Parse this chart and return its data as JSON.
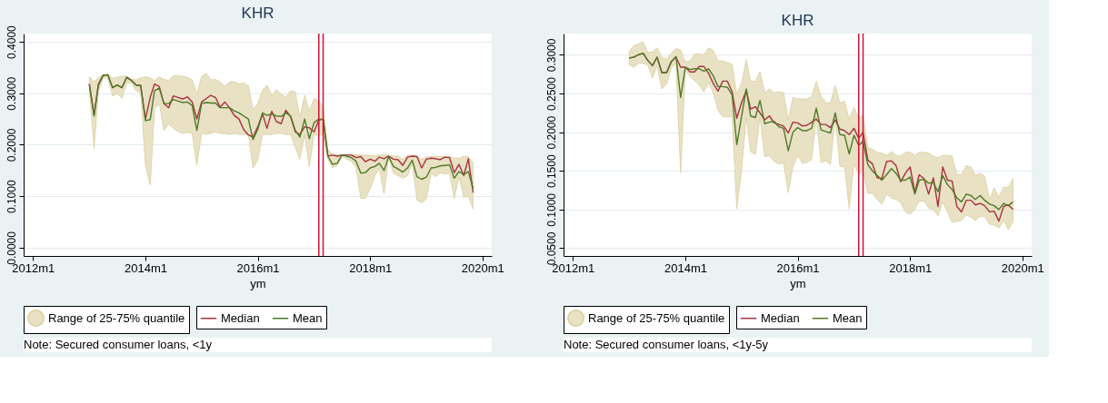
{
  "chart_data": [
    {
      "type": "line",
      "title": "KHR",
      "xlabel": "ym",
      "annotations": [
        "Note: Secured consumer loans, <1y"
      ],
      "x": [
        "2013-01",
        "2013-02",
        "2013-03",
        "2013-04",
        "2013-05",
        "2013-06",
        "2013-07",
        "2013-08",
        "2013-09",
        "2013-10",
        "2013-11",
        "2013-12",
        "2014-01",
        "2014-02",
        "2014-03",
        "2014-04",
        "2014-05",
        "2014-06",
        "2014-07",
        "2014-08",
        "2014-09",
        "2014-10",
        "2014-11",
        "2014-12",
        "2015-01",
        "2015-02",
        "2015-03",
        "2015-04",
        "2015-05",
        "2015-06",
        "2015-07",
        "2015-08",
        "2015-09",
        "2015-10",
        "2015-11",
        "2015-12",
        "2016-01",
        "2016-02",
        "2016-03",
        "2016-04",
        "2016-05",
        "2016-06",
        "2016-07",
        "2016-08",
        "2016-09",
        "2016-10",
        "2016-11",
        "2016-12",
        "2017-01",
        "2017-02",
        "2017-03",
        "2017-04",
        "2017-05",
        "2017-06",
        "2017-07",
        "2017-08",
        "2017-09",
        "2017-10",
        "2017-11",
        "2017-12",
        "2018-01",
        "2018-02",
        "2018-03",
        "2018-04",
        "2018-05",
        "2018-06",
        "2018-07",
        "2018-08",
        "2018-09",
        "2018-10",
        "2018-11",
        "2018-12",
        "2019-01",
        "2019-02",
        "2019-03",
        "2019-04",
        "2019-05",
        "2019-06",
        "2019-07",
        "2019-08",
        "2019-09",
        "2019-10",
        "2019-11"
      ],
      "series": [
        {
          "name": "Range of 25-75% quantile",
          "type": "area",
          "color": "#e8e1c4",
          "values": [
            null,
            null,
            null,
            null,
            null,
            null,
            null,
            null,
            null,
            null,
            null,
            null,
            null,
            null,
            null,
            null,
            null,
            null,
            null,
            null,
            null,
            null,
            null,
            null,
            null,
            null,
            null,
            null,
            null,
            null,
            null,
            null,
            null,
            null,
            null,
            null,
            null,
            null,
            null,
            null,
            null,
            null,
            null,
            null,
            null,
            null,
            null,
            null,
            null,
            null,
            null,
            null,
            null,
            null,
            null,
            null,
            null,
            null,
            null,
            null,
            null,
            null,
            null,
            null,
            null,
            null,
            null,
            null,
            null,
            null,
            null,
            null,
            null,
            null,
            null,
            null,
            null,
            null,
            null,
            null,
            null,
            null,
            null
          ],
          "lower": [
            0.31,
            0.193,
            0.305,
            0.33,
            0.33,
            0.295,
            0.3,
            0.29,
            0.32,
            0.32,
            0.305,
            0.3,
            0.16,
            0.122,
            0.27,
            0.28,
            0.228,
            0.24,
            0.232,
            0.226,
            0.222,
            0.224,
            0.222,
            0.16,
            0.222,
            0.22,
            0.222,
            0.225,
            0.222,
            0.222,
            0.22,
            0.222,
            0.22,
            0.22,
            0.22,
            0.155,
            0.17,
            0.22,
            0.22,
            0.22,
            0.222,
            0.222,
            0.22,
            0.22,
            0.195,
            0.172,
            0.22,
            0.157,
            0.22,
            0.218,
            0.22,
            0.172,
            0.155,
            0.16,
            0.178,
            0.172,
            0.168,
            0.155,
            0.096,
            0.096,
            0.115,
            0.14,
            0.155,
            0.104,
            0.175,
            0.145,
            0.14,
            0.135,
            0.14,
            0.165,
            0.093,
            0.087,
            0.095,
            0.145,
            0.138,
            0.145,
            0.143,
            0.145,
            0.095,
            0.138,
            0.098,
            0.1,
            0.075
          ],
          "upper": [
            0.332,
            0.323,
            0.33,
            0.336,
            0.337,
            0.329,
            0.331,
            0.333,
            0.333,
            0.327,
            0.326,
            0.33,
            0.332,
            0.33,
            0.325,
            0.332,
            0.327,
            0.325,
            0.334,
            0.334,
            0.333,
            0.331,
            0.326,
            0.298,
            0.333,
            0.339,
            0.326,
            0.327,
            0.322,
            0.313,
            0.322,
            0.323,
            0.318,
            0.32,
            0.315,
            0.268,
            0.28,
            0.306,
            0.316,
            0.296,
            0.307,
            0.298,
            0.293,
            0.305,
            0.303,
            0.254,
            0.296,
            0.265,
            0.29,
            0.286,
            0.272,
            0.19,
            0.182,
            0.18,
            0.181,
            0.181,
            0.181,
            0.181,
            0.18,
            0.18,
            0.179,
            0.179,
            0.18,
            0.18,
            0.179,
            0.178,
            0.178,
            0.172,
            0.18,
            0.179,
            0.178,
            0.172,
            0.176,
            0.177,
            0.178,
            0.177,
            0.178,
            0.177,
            0.174,
            0.174,
            0.178,
            0.177,
            0.165
          ]
        },
        {
          "name": "Median",
          "color": "#a8323e",
          "values": [
            0.318,
            0.258,
            0.318,
            0.335,
            0.336,
            0.311,
            0.316,
            0.311,
            0.331,
            0.325,
            0.316,
            0.315,
            0.25,
            0.292,
            0.318,
            0.313,
            0.28,
            0.272,
            0.295,
            0.292,
            0.289,
            0.293,
            0.283,
            0.25,
            0.283,
            0.29,
            0.296,
            0.292,
            0.273,
            0.283,
            0.272,
            0.257,
            0.25,
            0.23,
            0.219,
            0.215,
            0.235,
            0.26,
            0.232,
            0.265,
            0.245,
            0.241,
            0.267,
            0.255,
            0.225,
            0.22,
            0.235,
            0.233,
            0.225,
            0.248,
            0.25,
            0.178,
            0.18,
            0.178,
            0.18,
            0.18,
            0.18,
            0.175,
            0.177,
            0.167,
            0.172,
            0.168,
            0.176,
            0.173,
            0.178,
            0.172,
            0.171,
            0.16,
            0.176,
            0.178,
            0.177,
            0.155,
            0.172,
            0.174,
            0.173,
            0.171,
            0.176,
            0.175,
            0.146,
            0.162,
            0.14,
            0.173,
            0.107
          ]
        },
        {
          "name": "Mean",
          "color": "#4f7a28",
          "values": [
            0.318,
            0.256,
            0.315,
            0.335,
            0.336,
            0.311,
            0.316,
            0.311,
            0.331,
            0.325,
            0.316,
            0.315,
            0.247,
            0.249,
            0.305,
            0.31,
            0.28,
            0.28,
            0.288,
            0.285,
            0.282,
            0.283,
            0.276,
            0.228,
            0.28,
            0.282,
            0.281,
            0.281,
            0.272,
            0.272,
            0.272,
            0.266,
            0.262,
            0.256,
            0.25,
            0.21,
            0.23,
            0.262,
            0.257,
            0.26,
            0.256,
            0.255,
            0.262,
            0.256,
            0.228,
            0.215,
            0.25,
            0.212,
            0.243,
            0.25,
            0.249,
            0.178,
            0.162,
            0.164,
            0.18,
            0.178,
            0.175,
            0.168,
            0.145,
            0.146,
            0.155,
            0.158,
            0.164,
            0.15,
            0.177,
            0.158,
            0.153,
            0.147,
            0.155,
            0.17,
            0.138,
            0.133,
            0.137,
            0.155,
            0.156,
            0.159,
            0.16,
            0.161,
            0.135,
            0.148,
            0.142,
            0.148,
            0.115
          ]
        }
      ],
      "ref_lines": [
        {
          "axis": "x",
          "value": "2017-02",
          "color": "#d0103a"
        },
        {
          "axis": "x",
          "value": "2017-03",
          "color": "#d0103a"
        }
      ],
      "xlim": [
        "2011-11",
        "2020-03"
      ],
      "xticks": [
        {
          "value": "2012-01",
          "label": "2012m1"
        },
        {
          "value": "2014-01",
          "label": "2014m1"
        },
        {
          "value": "2016-01",
          "label": "2016m1"
        },
        {
          "value": "2018-01",
          "label": "2018m1"
        },
        {
          "value": "2020-01",
          "label": "2020m1"
        }
      ],
      "ylim": [
        -0.016,
        0.416
      ],
      "yticks": [
        {
          "value": 0,
          "label": "0.0000"
        },
        {
          "value": 0.1,
          "label": "0.1000"
        },
        {
          "value": 0.2,
          "label": "0.2000"
        },
        {
          "value": 0.3,
          "label": "0.3000"
        },
        {
          "value": 0.4,
          "label": "0.4000"
        }
      ],
      "grid": "y",
      "legend": "bottom"
    },
    {
      "type": "line",
      "title": "KHR",
      "xlabel": "ym",
      "annotations": [
        "Note: Secured consumer loans, <1y-5y"
      ],
      "x": [
        "2013-01",
        "2013-02",
        "2013-03",
        "2013-04",
        "2013-05",
        "2013-06",
        "2013-07",
        "2013-08",
        "2013-09",
        "2013-10",
        "2013-11",
        "2013-12",
        "2014-01",
        "2014-02",
        "2014-03",
        "2014-04",
        "2014-05",
        "2014-06",
        "2014-07",
        "2014-08",
        "2014-09",
        "2014-10",
        "2014-11",
        "2014-12",
        "2015-01",
        "2015-02",
        "2015-03",
        "2015-04",
        "2015-05",
        "2015-06",
        "2015-07",
        "2015-08",
        "2015-09",
        "2015-10",
        "2015-11",
        "2015-12",
        "2016-01",
        "2016-02",
        "2016-03",
        "2016-04",
        "2016-05",
        "2016-06",
        "2016-07",
        "2016-08",
        "2016-09",
        "2016-10",
        "2016-11",
        "2016-12",
        "2017-01",
        "2017-02",
        "2017-03",
        "2017-04",
        "2017-05",
        "2017-06",
        "2017-07",
        "2017-08",
        "2017-09",
        "2017-10",
        "2017-11",
        "2017-12",
        "2018-01",
        "2018-02",
        "2018-03",
        "2018-04",
        "2018-05",
        "2018-06",
        "2018-07",
        "2018-08",
        "2018-09",
        "2018-10",
        "2018-11",
        "2018-12",
        "2019-01",
        "2019-02",
        "2019-03",
        "2019-04",
        "2019-05",
        "2019-06",
        "2019-07",
        "2019-08",
        "2019-09",
        "2019-10",
        "2019-11"
      ],
      "series": [
        {
          "name": "Range of 25-75% quantile",
          "type": "area",
          "color": "#e8e1c4",
          "values": [
            null,
            null,
            null,
            null,
            null,
            null,
            null,
            null,
            null,
            null,
            null,
            null,
            null,
            null,
            null,
            null,
            null,
            null,
            null,
            null,
            null,
            null,
            null,
            null,
            null,
            null,
            null,
            null,
            null,
            null,
            null,
            null,
            null,
            null,
            null,
            null,
            null,
            null,
            null,
            null,
            null,
            null,
            null,
            null,
            null,
            null,
            null,
            null,
            null,
            null,
            null,
            null,
            null,
            null,
            null,
            null,
            null,
            null,
            null,
            null,
            null,
            null,
            null,
            null,
            null,
            null,
            null,
            null,
            null,
            null,
            null,
            null,
            null,
            null,
            null,
            null,
            null,
            null,
            null,
            null,
            null,
            null,
            null
          ],
          "lower": [
            0.287,
            0.284,
            0.289,
            0.289,
            0.287,
            0.27,
            0.286,
            0.256,
            0.262,
            0.283,
            0.289,
            0.148,
            0.28,
            0.272,
            0.267,
            0.261,
            0.252,
            0.264,
            0.251,
            0.228,
            0.22,
            0.22,
            0.22,
            0.101,
            0.15,
            0.22,
            0.175,
            0.171,
            0.22,
            0.168,
            0.17,
            0.162,
            0.159,
            0.16,
            0.122,
            0.155,
            0.17,
            0.16,
            0.161,
            0.165,
            0.22,
            0.161,
            0.163,
            0.158,
            0.22,
            0.156,
            0.155,
            0.101,
            0.159,
            0.146,
            0.15,
            0.121,
            0.121,
            0.113,
            0.107,
            0.12,
            0.115,
            0.113,
            0.109,
            0.097,
            0.094,
            0.1,
            0.111,
            0.111,
            0.102,
            0.1,
            0.092,
            0.11,
            0.097,
            0.083,
            0.085,
            0.086,
            0.093,
            0.09,
            0.086,
            0.091,
            0.091,
            0.081,
            0.08,
            0.076,
            0.086,
            0.074,
            0.084
          ],
          "upper": [
            0.305,
            0.312,
            0.314,
            0.317,
            0.303,
            0.304,
            0.309,
            0.297,
            0.294,
            0.302,
            0.308,
            0.306,
            0.291,
            0.292,
            0.301,
            0.301,
            0.3,
            0.309,
            0.306,
            0.292,
            0.292,
            0.29,
            0.288,
            0.249,
            0.263,
            0.294,
            0.266,
            0.266,
            0.278,
            0.251,
            0.256,
            0.251,
            0.252,
            0.251,
            0.216,
            0.245,
            0.243,
            0.243,
            0.243,
            0.246,
            0.266,
            0.247,
            0.238,
            0.238,
            0.26,
            0.238,
            0.24,
            0.217,
            0.232,
            0.218,
            0.222,
            0.18,
            0.178,
            0.174,
            0.173,
            0.17,
            0.175,
            0.17,
            0.169,
            0.174,
            0.174,
            0.17,
            0.174,
            0.174,
            0.173,
            0.169,
            0.167,
            0.17,
            0.17,
            0.169,
            0.145,
            0.145,
            0.157,
            0.155,
            0.144,
            0.147,
            0.143,
            0.113,
            0.128,
            0.116,
            0.129,
            0.129,
            0.14
          ]
        },
        {
          "name": "Median",
          "color": "#a8323e",
          "values": [
            0.296,
            0.297,
            0.3,
            0.302,
            0.293,
            0.286,
            0.297,
            0.277,
            0.277,
            0.291,
            0.297,
            0.284,
            0.284,
            0.278,
            0.278,
            0.285,
            0.285,
            0.276,
            0.263,
            0.253,
            0.266,
            0.266,
            0.252,
            0.218,
            0.238,
            0.254,
            0.23,
            0.233,
            0.225,
            0.216,
            0.221,
            0.212,
            0.21,
            0.208,
            0.199,
            0.213,
            0.212,
            0.208,
            0.209,
            0.213,
            0.217,
            0.21,
            0.21,
            0.206,
            0.216,
            0.204,
            0.202,
            0.197,
            0.205,
            0.192,
            0.2,
            0.164,
            0.159,
            0.141,
            0.14,
            0.162,
            0.163,
            0.157,
            0.136,
            0.147,
            0.155,
            0.122,
            0.145,
            0.14,
            0.12,
            0.141,
            0.104,
            0.155,
            0.138,
            0.137,
            0.104,
            0.097,
            0.112,
            0.112,
            0.106,
            0.108,
            0.105,
            0.097,
            0.098,
            0.085,
            0.104,
            0.106,
            0.1
          ]
        },
        {
          "name": "Mean",
          "color": "#4f7a28",
          "values": [
            0.296,
            0.297,
            0.3,
            0.302,
            0.293,
            0.286,
            0.297,
            0.277,
            0.277,
            0.291,
            0.298,
            0.245,
            0.284,
            0.281,
            0.282,
            0.282,
            0.279,
            0.282,
            0.273,
            0.259,
            0.259,
            0.258,
            0.248,
            0.184,
            0.22,
            0.256,
            0.221,
            0.219,
            0.241,
            0.211,
            0.213,
            0.214,
            0.207,
            0.205,
            0.176,
            0.2,
            0.206,
            0.202,
            0.202,
            0.205,
            0.231,
            0.203,
            0.201,
            0.199,
            0.225,
            0.197,
            0.196,
            0.172,
            0.196,
            0.183,
            0.188,
            0.158,
            0.15,
            0.144,
            0.138,
            0.145,
            0.153,
            0.147,
            0.138,
            0.138,
            0.142,
            0.12,
            0.138,
            0.139,
            0.134,
            0.135,
            0.123,
            0.144,
            0.132,
            0.126,
            0.115,
            0.11,
            0.12,
            0.118,
            0.113,
            0.118,
            0.112,
            0.107,
            0.105,
            0.1,
            0.108,
            0.105,
            0.11
          ]
        }
      ],
      "ref_lines": [
        {
          "axis": "x",
          "value": "2017-02",
          "color": "#d0103a"
        },
        {
          "axis": "x",
          "value": "2017-03",
          "color": "#d0103a"
        }
      ],
      "xlim": [
        "2011-11",
        "2020-03"
      ],
      "xticks": [
        {
          "value": "2012-01",
          "label": "2012m1"
        },
        {
          "value": "2014-01",
          "label": "2014m1"
        },
        {
          "value": "2016-01",
          "label": "2016m1"
        },
        {
          "value": "2018-01",
          "label": "2018m1"
        },
        {
          "value": "2020-01",
          "label": "2020m1"
        }
      ],
      "ylim": [
        0.04,
        0.3275
      ],
      "yticks": [
        {
          "value": 0.05,
          "label": "0.0500"
        },
        {
          "value": 0.1,
          "label": "0.1000"
        },
        {
          "value": 0.15,
          "label": "0.1500"
        },
        {
          "value": 0.2,
          "label": "0.2000"
        },
        {
          "value": 0.25,
          "label": "0.2500"
        },
        {
          "value": 0.3,
          "label": "0.3000"
        }
      ],
      "grid": "y",
      "legend": "bottom"
    }
  ]
}
